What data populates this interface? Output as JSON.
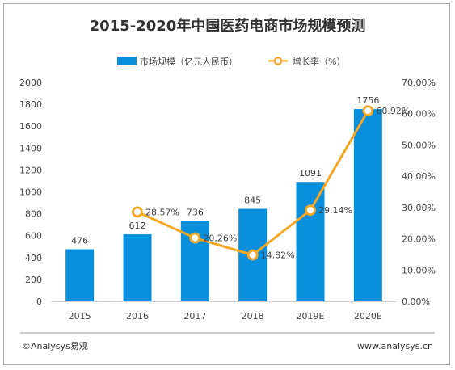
{
  "chart_data": {
    "type": "bar",
    "title": "2015-2020年中国医药电商市场规模预测",
    "categories": [
      "2015",
      "2016",
      "2017",
      "2018",
      "2019E",
      "2020E"
    ],
    "series": [
      {
        "name": "市场规模（亿元人民币）",
        "type": "bar",
        "axis": "left",
        "values": [
          476,
          612,
          736,
          845,
          1091,
          1756
        ],
        "color": "#0a8fdc"
      },
      {
        "name": "增长率（%）",
        "type": "line",
        "axis": "right",
        "values": [
          null,
          28.57,
          20.26,
          14.82,
          29.14,
          60.92
        ],
        "color": "#f5a623"
      }
    ],
    "bar_labels": [
      "476",
      "612",
      "736",
      "845",
      "1091",
      "1756"
    ],
    "rate_labels": [
      "",
      "28.57%",
      "20.26%",
      "14.82%",
      "29.14%",
      "60.92%"
    ],
    "left_axis": {
      "min": 0,
      "max": 2000,
      "ticks": [
        0,
        200,
        400,
        600,
        800,
        1000,
        1200,
        1400,
        1600,
        1800,
        2000
      ]
    },
    "right_axis": {
      "min": 0,
      "max": 70,
      "ticks": [
        "0.00%",
        "10.00%",
        "20.00%",
        "30.00%",
        "40.00%",
        "50.00%",
        "60.00%",
        "70.00%"
      ]
    },
    "grid": false,
    "legend_position": "top-center"
  },
  "footer": {
    "left": "©Analysys易观",
    "right": "www.analysys.cn"
  }
}
